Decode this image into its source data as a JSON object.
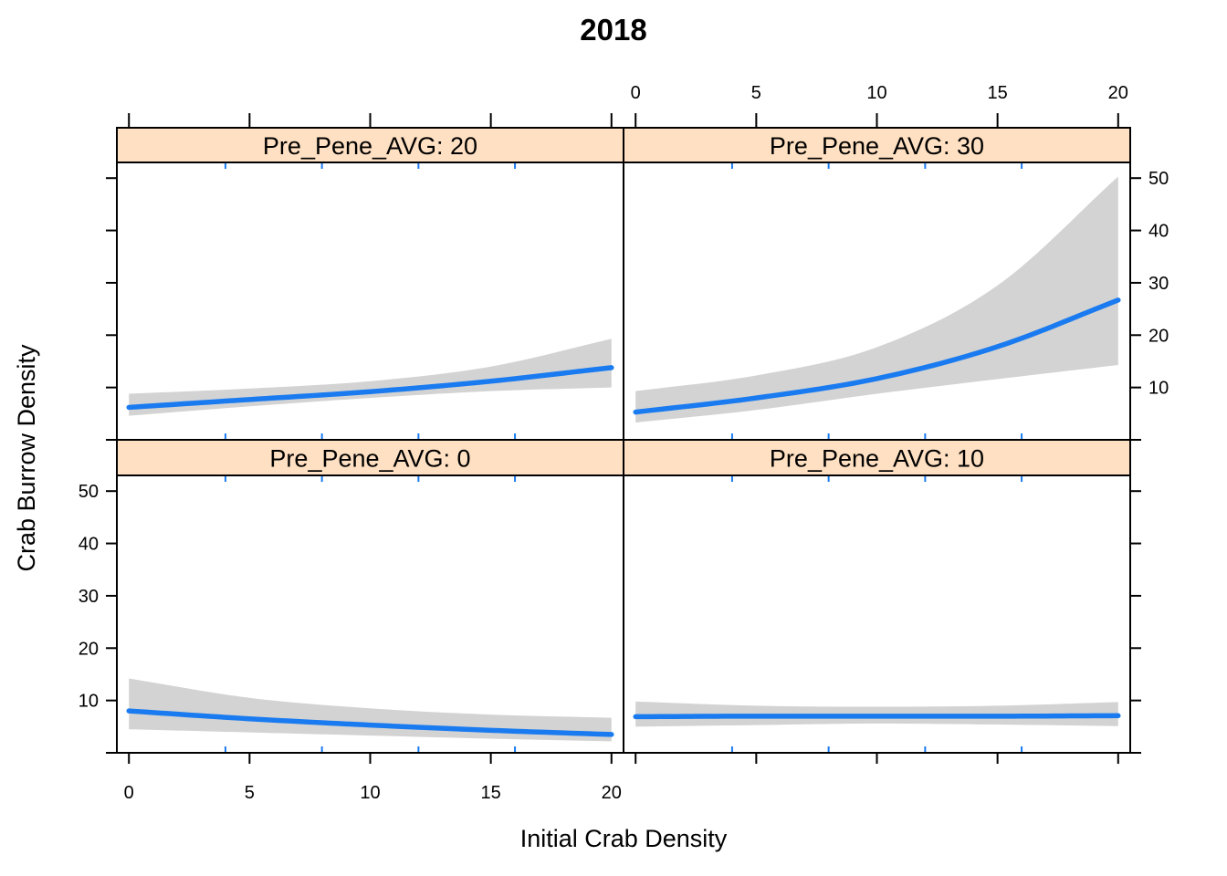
{
  "chart_data": {
    "type": "line",
    "title": "2018",
    "xlabel": "Initial Crab Density",
    "ylabel": "Crab Burrow Density",
    "xlim": [
      -0.5,
      20.5
    ],
    "ylim": [
      0,
      53
    ],
    "x_ticks": [
      0,
      5,
      10,
      15,
      20
    ],
    "y_ticks": [
      10,
      20,
      30,
      40,
      50
    ],
    "layout": "2x2 lattice, shared axes",
    "colors": {
      "line": "#1a7bf0",
      "band": "#d3d3d3",
      "strip": "#ffe0c2",
      "minor_ticks": "#1a7bf0"
    },
    "panels": [
      {
        "label": "Pre_Pene_AVG: 20",
        "position": "top-left",
        "x": [
          0,
          5,
          10,
          15,
          20
        ],
        "fit": [
          6.2,
          7.7,
          9.2,
          11.2,
          13.8
        ],
        "lower": [
          4.6,
          6.4,
          8.0,
          9.3,
          10.0
        ],
        "upper": [
          8.8,
          9.8,
          11.2,
          14.0,
          19.3
        ]
      },
      {
        "label": "Pre_Pene_AVG: 30",
        "position": "top-right",
        "x": [
          0,
          5,
          10,
          15,
          20
        ],
        "fit": [
          5.3,
          8.0,
          11.7,
          17.8,
          26.7
        ],
        "lower": [
          3.3,
          5.7,
          8.8,
          11.6,
          14.3
        ],
        "upper": [
          9.3,
          12.3,
          17.7,
          29.5,
          50.3
        ]
      },
      {
        "label": "Pre_Pene_AVG: 0",
        "position": "bottom-left",
        "x": [
          0,
          5,
          10,
          15,
          20
        ],
        "fit": [
          8.0,
          6.5,
          5.3,
          4.3,
          3.5
        ],
        "lower": [
          4.5,
          3.9,
          3.3,
          2.7,
          2.2
        ],
        "upper": [
          14.2,
          10.5,
          8.5,
          7.3,
          6.7
        ]
      },
      {
        "label": "Pre_Pene_AVG: 10",
        "position": "bottom-right",
        "x": [
          0,
          5,
          10,
          15,
          20
        ],
        "fit": [
          6.9,
          7.0,
          7.0,
          7.0,
          7.1
        ],
        "lower": [
          5.0,
          5.3,
          5.6,
          5.4,
          5.1
        ],
        "upper": [
          9.8,
          9.0,
          8.8,
          9.0,
          9.7
        ]
      }
    ]
  }
}
